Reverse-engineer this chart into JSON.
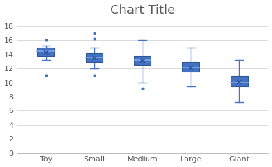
{
  "title": "Chart Title",
  "categories": [
    "Toy",
    "Small",
    "Medium",
    "Large",
    "Giant"
  ],
  "boxes": [
    {
      "q1": 13.8,
      "median": 14.5,
      "q3": 15.0,
      "whisker_low": 13.2,
      "whisker_high": 15.3,
      "mean": 14.3,
      "outliers": [
        16.0,
        11.0
      ]
    },
    {
      "q1": 12.9,
      "median": 13.6,
      "q3": 14.2,
      "whisker_low": 12.0,
      "whisker_high": 15.0,
      "mean": 13.5,
      "outliers": [
        17.0,
        16.2,
        11.0
      ]
    },
    {
      "q1": 12.5,
      "median": 13.2,
      "q3": 13.8,
      "whisker_low": 10.0,
      "whisker_high": 16.0,
      "mean": 13.1,
      "outliers": [
        9.2
      ]
    },
    {
      "q1": 11.5,
      "median": 12.1,
      "q3": 12.9,
      "whisker_low": 9.5,
      "whisker_high": 15.0,
      "mean": 12.1,
      "outliers": []
    },
    {
      "q1": 9.5,
      "median": 10.0,
      "q3": 10.9,
      "whisker_low": 7.2,
      "whisker_high": 13.2,
      "mean": 10.1,
      "outliers": []
    }
  ],
  "box_color": "#4472C4",
  "box_edge_color": "#2F5597",
  "whisker_color": "#4472C4",
  "median_color": "#7BA7E8",
  "mean_color": "#2F5597",
  "outlier_color": "#4472C4",
  "background_color": "#FFFFFF",
  "plot_area_color": "#FFFFFF",
  "grid_color": "#D9D9D9",
  "ylim": [
    0,
    19
  ],
  "yticks": [
    0,
    2,
    4,
    6,
    8,
    10,
    12,
    14,
    16,
    18
  ],
  "title_fontsize": 13,
  "tick_fontsize": 8,
  "outer_border_color": "#BFBFBF",
  "box_width": 0.35
}
